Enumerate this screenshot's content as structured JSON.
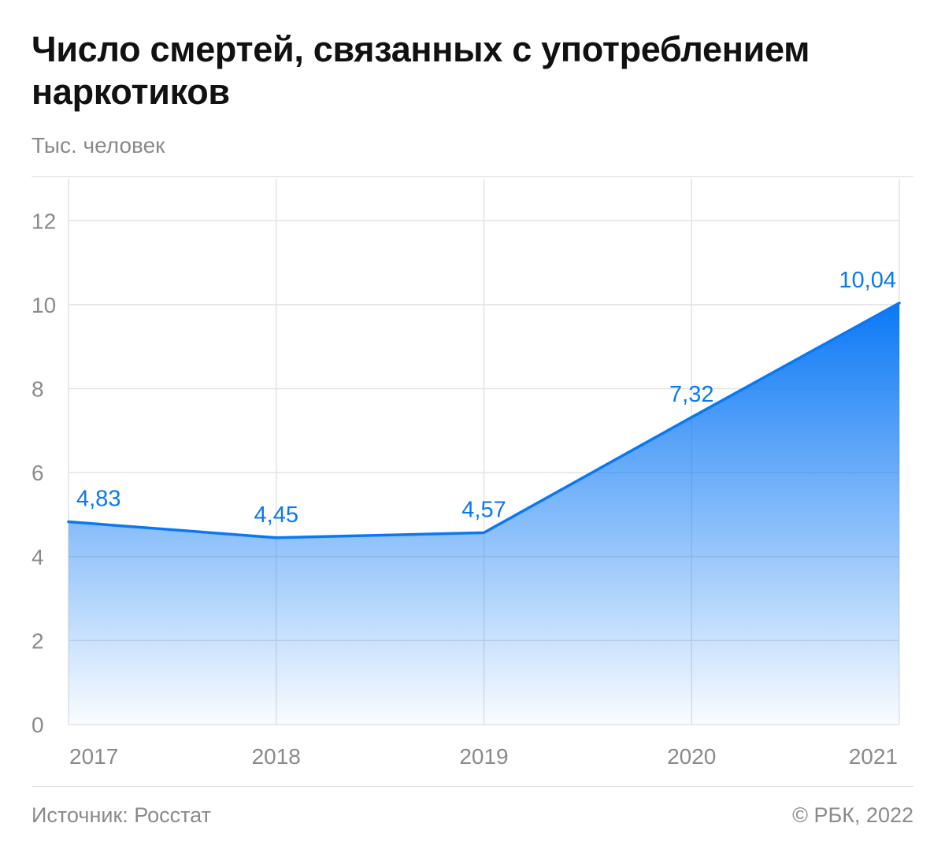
{
  "title": "Число смертей, связанных с употреблением наркотиков",
  "subtitle": "Тыс. человек",
  "footer": {
    "source": "Источник: Росстат",
    "copyright": "© РБК, 2022"
  },
  "colors": {
    "accent": "#0a78f5",
    "grid": "#e3e3e3",
    "tick_text": "#8a8a8a"
  },
  "chart_data": {
    "type": "area",
    "x": [
      "2017",
      "2018",
      "2019",
      "2020",
      "2021"
    ],
    "series": [
      {
        "values": [
          4.83,
          4.45,
          4.57,
          7.32,
          10.04
        ],
        "value_labels": [
          "4,83",
          "4,45",
          "4,57",
          "7,32",
          "10,04"
        ]
      }
    ],
    "ylabel": "Тыс. человек",
    "ylim": [
      0,
      13
    ],
    "yticks": [
      0,
      2,
      4,
      6,
      8,
      10,
      12
    ],
    "grid": true,
    "legend": "none"
  }
}
